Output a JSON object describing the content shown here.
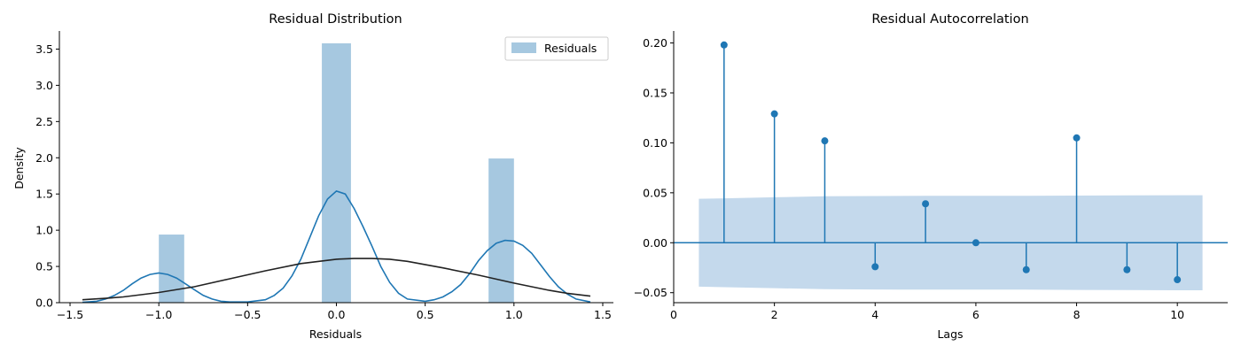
{
  "chart_data": [
    {
      "type": "bar",
      "title": "Residual Distribution",
      "xlabel": "Residuals",
      "ylabel": "Density",
      "xlim": [
        -1.56,
        1.56
      ],
      "ylim": [
        0,
        3.75
      ],
      "xticks": [
        -1.5,
        -1.0,
        -0.5,
        0.0,
        0.5,
        1.0,
        1.5
      ],
      "xtick_labels": [
        "−1.5",
        "−1.0",
        "−0.5",
        "0.0",
        "0.5",
        "1.0",
        "1.5"
      ],
      "yticks": [
        0.0,
        0.5,
        1.0,
        1.5,
        2.0,
        2.5,
        3.0,
        3.5
      ],
      "ytick_labels": [
        "0.0",
        "0.5",
        "1.0",
        "1.5",
        "2.0",
        "2.5",
        "3.0",
        "3.5"
      ],
      "legend": {
        "position": "top-right",
        "entries": [
          "Residuals"
        ]
      },
      "grid": false,
      "colors": {
        "hist": "#a6c8e0",
        "kde": "#1f77b4",
        "normal": "#222222"
      },
      "histogram": {
        "name": "Residuals",
        "bins": [
          {
            "x0": -1.0,
            "x1": -0.857,
            "density": 0.94
          },
          {
            "x0": -0.082,
            "x1": 0.082,
            "density": 3.58
          },
          {
            "x0": 0.857,
            "x1": 1.0,
            "density": 1.99
          }
        ]
      },
      "kde": {
        "x": [
          -1.43,
          -1.35,
          -1.3,
          -1.25,
          -1.2,
          -1.15,
          -1.1,
          -1.05,
          -1.0,
          -0.95,
          -0.9,
          -0.85,
          -0.8,
          -0.75,
          -0.7,
          -0.65,
          -0.6,
          -0.5,
          -0.4,
          -0.35,
          -0.3,
          -0.25,
          -0.2,
          -0.15,
          -0.1,
          -0.05,
          0.0,
          0.05,
          0.1,
          0.15,
          0.2,
          0.25,
          0.3,
          0.35,
          0.4,
          0.5,
          0.55,
          0.6,
          0.65,
          0.7,
          0.75,
          0.8,
          0.85,
          0.9,
          0.95,
          1.0,
          1.05,
          1.1,
          1.15,
          1.2,
          1.25,
          1.3,
          1.35,
          1.43
        ],
        "y": [
          0.005,
          0.02,
          0.05,
          0.1,
          0.17,
          0.26,
          0.34,
          0.39,
          0.41,
          0.39,
          0.34,
          0.26,
          0.18,
          0.1,
          0.05,
          0.02,
          0.01,
          0.01,
          0.04,
          0.1,
          0.2,
          0.37,
          0.6,
          0.9,
          1.2,
          1.43,
          1.54,
          1.5,
          1.3,
          1.05,
          0.78,
          0.5,
          0.28,
          0.13,
          0.05,
          0.02,
          0.04,
          0.08,
          0.15,
          0.25,
          0.4,
          0.58,
          0.72,
          0.82,
          0.86,
          0.85,
          0.79,
          0.68,
          0.52,
          0.36,
          0.22,
          0.12,
          0.05,
          0.01
        ]
      },
      "normal_fit": {
        "x": [
          -1.43,
          -1.3,
          -1.2,
          -1.0,
          -0.8,
          -0.6,
          -0.4,
          -0.2,
          0.0,
          0.1,
          0.2,
          0.3,
          0.4,
          0.6,
          0.8,
          1.0,
          1.2,
          1.3,
          1.43
        ],
        "y": [
          0.04,
          0.06,
          0.08,
          0.14,
          0.22,
          0.33,
          0.44,
          0.54,
          0.6,
          0.61,
          0.61,
          0.6,
          0.57,
          0.48,
          0.38,
          0.27,
          0.17,
          0.13,
          0.09
        ]
      }
    },
    {
      "type": "stem",
      "title": "Residual Autocorrelation",
      "xlabel": "Lags",
      "ylabel": "",
      "xlim": [
        0,
        11
      ],
      "ylim": [
        -0.06,
        0.212
      ],
      "xticks": [
        0,
        2,
        4,
        6,
        8,
        10
      ],
      "xtick_labels": [
        "0",
        "2",
        "4",
        "6",
        "8",
        "10"
      ],
      "yticks": [
        -0.05,
        0.0,
        0.05,
        0.1,
        0.15,
        0.2
      ],
      "ytick_labels": [
        "−0.05",
        "0.00",
        "0.05",
        "0.10",
        "0.15",
        "0.20"
      ],
      "grid": false,
      "colors": {
        "stem": "#1f77b4",
        "band": "#c4d9ec"
      },
      "lags": [
        1,
        2,
        3,
        4,
        5,
        6,
        7,
        8,
        9,
        10
      ],
      "values": [
        0.198,
        0.129,
        0.102,
        -0.024,
        0.039,
        0.0,
        -0.027,
        0.105,
        -0.027,
        -0.037
      ],
      "confidence_band": {
        "x": [
          0.5,
          1,
          2,
          3,
          4,
          5,
          6,
          7,
          8,
          9,
          10,
          10.5
        ],
        "upper": [
          0.044,
          0.0445,
          0.0455,
          0.0465,
          0.0468,
          0.047,
          0.047,
          0.047,
          0.0472,
          0.0474,
          0.0476,
          0.0476
        ],
        "lower": [
          -0.044,
          -0.0445,
          -0.0455,
          -0.0465,
          -0.0468,
          -0.047,
          -0.047,
          -0.047,
          -0.0472,
          -0.0474,
          -0.0476,
          -0.0476
        ]
      }
    }
  ]
}
